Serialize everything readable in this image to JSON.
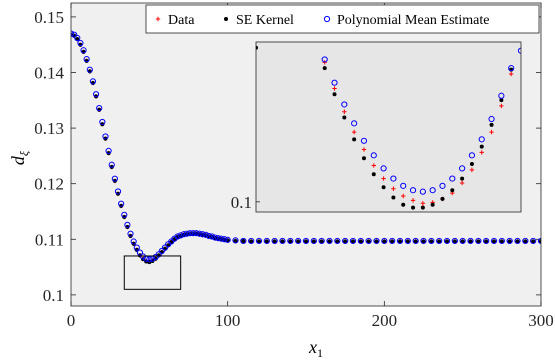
{
  "chart_data": {
    "type": "scatter",
    "xlabel": "x",
    "xlabel_sub": "1",
    "ylabel": "d",
    "ylabel_sub": "ξ",
    "xlim": [
      0,
      300
    ],
    "ylim": [
      0.098,
      0.1525
    ],
    "xticks": [
      0,
      100,
      200,
      300
    ],
    "yticks": [
      0.1,
      0.11,
      0.12,
      0.13,
      0.14,
      0.15
    ],
    "xtick_labels": [
      "0",
      "100",
      "200",
      "300"
    ],
    "ytick_labels": [
      "0.1",
      "0.11",
      "0.12",
      "0.13",
      "0.14",
      "0.15"
    ],
    "background": "#f0f0f0",
    "legend": {
      "placement": "top-right",
      "entries": [
        {
          "label": "Data",
          "marker": "plus",
          "color": "#ff0000"
        },
        {
          "label": "SE Kernel",
          "marker": "dot",
          "color": "#000000"
        },
        {
          "label": "Polynomial Mean Estimate",
          "marker": "circle",
          "color": "#0000ff"
        }
      ]
    },
    "series": [
      {
        "name": "Data",
        "marker": "plus",
        "color": "#ff0000",
        "x": [
          0,
          2,
          4,
          6,
          8,
          10,
          12,
          14,
          16,
          18,
          20,
          22,
          24,
          26,
          28,
          30,
          32,
          34,
          36,
          38,
          40,
          42,
          44,
          46,
          48,
          50,
          52,
          54,
          56,
          58,
          60,
          62,
          64,
          66,
          68,
          70,
          72,
          74,
          76,
          78,
          80,
          82,
          84,
          86,
          88,
          90,
          92,
          94,
          96,
          98,
          100,
          105,
          110,
          115,
          120,
          125,
          130,
          135,
          140,
          145,
          150,
          155,
          160,
          165,
          170,
          175,
          180,
          185,
          190,
          195,
          200,
          205,
          210,
          215,
          220,
          225,
          230,
          235,
          240,
          245,
          250,
          255,
          260,
          265,
          270,
          275,
          280,
          285,
          290,
          295,
          300
        ],
        "y": [
          0.1468,
          0.1466,
          0.146,
          0.145,
          0.1437,
          0.1421,
          0.1402,
          0.1381,
          0.1357,
          0.1333,
          0.1307,
          0.1281,
          0.1255,
          0.123,
          0.1205,
          0.1182,
          0.116,
          0.114,
          0.1122,
          0.1106,
          0.1092,
          0.1081,
          0.1071,
          0.1065,
          0.1061,
          0.106,
          0.1062,
          0.1065,
          0.1071,
          0.1077,
          0.1083,
          0.1089,
          0.1095,
          0.11,
          0.1104,
          0.1106,
          0.1108,
          0.1109,
          0.111,
          0.111,
          0.111,
          0.1109,
          0.1108,
          0.1107,
          0.1105,
          0.1104,
          0.1102,
          0.1101,
          0.11,
          0.1099,
          0.1098,
          0.1097,
          0.1097,
          0.1096,
          0.1096,
          0.1096,
          0.1096,
          0.1096,
          0.1096,
          0.1096,
          0.1096,
          0.1096,
          0.1096,
          0.1096,
          0.1096,
          0.1096,
          0.1096,
          0.1096,
          0.1096,
          0.1096,
          0.1096,
          0.1096,
          0.1096,
          0.1096,
          0.1096,
          0.1096,
          0.1096,
          0.1096,
          0.1096,
          0.1096,
          0.1096,
          0.1096,
          0.1096,
          0.1096,
          0.1096,
          0.1096,
          0.1096,
          0.1096,
          0.1096,
          0.1096,
          0.1096
        ]
      },
      {
        "name": "SE Kernel",
        "marker": "dot",
        "color": "#000000",
        "x": [
          0,
          2,
          4,
          6,
          8,
          10,
          12,
          14,
          16,
          18,
          20,
          22,
          24,
          26,
          28,
          30,
          32,
          34,
          36,
          38,
          40,
          42,
          44,
          46,
          48,
          50,
          52,
          54,
          56,
          58,
          60,
          62,
          64,
          66,
          68,
          70,
          72,
          74,
          76,
          78,
          80,
          82,
          84,
          86,
          88,
          90,
          92,
          94,
          96,
          98,
          100,
          105,
          110,
          115,
          120,
          125,
          130,
          135,
          140,
          145,
          150,
          155,
          160,
          165,
          170,
          175,
          180,
          185,
          190,
          195,
          200,
          205,
          210,
          215,
          220,
          225,
          230,
          235,
          240,
          245,
          250,
          255,
          260,
          265,
          270,
          275,
          280,
          285,
          290,
          295,
          300
        ],
        "y": [
          0.1468,
          0.1466,
          0.146,
          0.145,
          0.1437,
          0.1421,
          0.1402,
          0.1381,
          0.1357,
          0.1333,
          0.1307,
          0.1281,
          0.1255,
          0.123,
          0.1205,
          0.1182,
          0.116,
          0.114,
          0.1122,
          0.1106,
          0.1092,
          0.1081,
          0.1071,
          0.1064,
          0.106,
          0.1059,
          0.1061,
          0.1065,
          0.1071,
          0.1077,
          0.1083,
          0.1089,
          0.1095,
          0.11,
          0.1104,
          0.1106,
          0.1108,
          0.1109,
          0.111,
          0.111,
          0.111,
          0.1109,
          0.1108,
          0.1107,
          0.1105,
          0.1104,
          0.1102,
          0.1101,
          0.11,
          0.1099,
          0.1098,
          0.1097,
          0.1097,
          0.1096,
          0.1096,
          0.1096,
          0.1096,
          0.1096,
          0.1096,
          0.1096,
          0.1096,
          0.1096,
          0.1096,
          0.1096,
          0.1096,
          0.1096,
          0.1096,
          0.1096,
          0.1096,
          0.1096,
          0.1096,
          0.1096,
          0.1096,
          0.1096,
          0.1096,
          0.1096,
          0.1096,
          0.1096,
          0.1096,
          0.1096,
          0.1096,
          0.1096,
          0.1096,
          0.1096,
          0.1096,
          0.1096,
          0.1096,
          0.1096,
          0.1096,
          0.1096,
          0.1096
        ]
      },
      {
        "name": "Polynomial Mean Estimate",
        "marker": "circle",
        "color": "#0000ff",
        "x": [
          0,
          2,
          4,
          6,
          8,
          10,
          12,
          14,
          16,
          18,
          20,
          22,
          24,
          26,
          28,
          30,
          32,
          34,
          36,
          38,
          40,
          42,
          44,
          46,
          48,
          50,
          52,
          54,
          56,
          58,
          60,
          62,
          64,
          66,
          68,
          70,
          72,
          74,
          76,
          78,
          80,
          82,
          84,
          86,
          88,
          90,
          92,
          94,
          96,
          98,
          100,
          105,
          110,
          115,
          120,
          125,
          130,
          135,
          140,
          145,
          150,
          155,
          160,
          165,
          170,
          175,
          180,
          185,
          190,
          195,
          200,
          205,
          210,
          215,
          220,
          225,
          230,
          235,
          240,
          245,
          250,
          255,
          260,
          265,
          270,
          275,
          280,
          285,
          290,
          295,
          300
        ],
        "y": [
          0.147,
          0.1468,
          0.1462,
          0.1453,
          0.144,
          0.1424,
          0.1405,
          0.1384,
          0.1361,
          0.1336,
          0.1311,
          0.1285,
          0.1259,
          0.1234,
          0.1209,
          0.1186,
          0.1164,
          0.1144,
          0.1126,
          0.111,
          0.1096,
          0.1085,
          0.1076,
          0.1069,
          0.1065,
          0.1064,
          0.1065,
          0.1068,
          0.1073,
          0.1079,
          0.1085,
          0.1091,
          0.1096,
          0.1101,
          0.1105,
          0.1107,
          0.1109,
          0.111,
          0.1111,
          0.1111,
          0.1111,
          0.111,
          0.1109,
          0.1108,
          0.1106,
          0.1105,
          0.1103,
          0.1102,
          0.1101,
          0.11,
          0.1099,
          0.1098,
          0.1097,
          0.1097,
          0.1097,
          0.1097,
          0.1097,
          0.1097,
          0.1097,
          0.1097,
          0.1097,
          0.1097,
          0.1097,
          0.1097,
          0.1097,
          0.1097,
          0.1097,
          0.1097,
          0.1097,
          0.1097,
          0.1097,
          0.1097,
          0.1097,
          0.1097,
          0.1097,
          0.1097,
          0.1097,
          0.1097,
          0.1097,
          0.1097,
          0.1097,
          0.1097,
          0.1097,
          0.1097,
          0.1097,
          0.1097,
          0.1097,
          0.1097,
          0.1097,
          0.1097,
          0.1097
        ]
      }
    ],
    "inset": {
      "zoom_box_xlim": [
        34,
        70
      ],
      "zoom_box_ylim": [
        0.101,
        0.107
      ],
      "xlim": [
        33,
        60
      ],
      "ylim": [
        0.09965,
        0.1055
      ],
      "yticks": [
        0.1
      ],
      "ytick_labels": [
        "0.1"
      ],
      "background": "#e6e6e6",
      "series": [
        {
          "name": "Data",
          "marker": "plus",
          "color": "#ff0000",
          "x": [
            40,
            41,
            42,
            43,
            44,
            45,
            46,
            47,
            48,
            49,
            50,
            51,
            52,
            53,
            54,
            55,
            56,
            57,
            58,
            59
          ],
          "y": [
            0.1048,
            0.1039,
            0.1031,
            0.1024,
            0.1018,
            0.10125,
            0.1008,
            0.10045,
            0.1002,
            0.10005,
            0.09995,
            0.09998,
            0.1001,
            0.1003,
            0.10065,
            0.1011,
            0.1017,
            0.1024,
            0.1033,
            0.1044
          ]
        },
        {
          "name": "SE Kernel",
          "marker": "dot",
          "color": "#000000",
          "x": [
            33,
            40,
            41,
            42,
            43,
            44,
            45,
            46,
            47,
            48,
            49,
            50,
            51,
            52,
            53,
            54,
            55,
            56,
            57,
            58,
            59
          ],
          "y": [
            0.1053,
            0.1046,
            0.1037,
            0.1029,
            0.10215,
            0.1015,
            0.10095,
            0.1005,
            0.10015,
            0.0999,
            0.0998,
            0.0998,
            0.0999,
            0.1001,
            0.1004,
            0.1008,
            0.1013,
            0.1019,
            0.10265,
            0.1035,
            0.10455
          ]
        },
        {
          "name": "Polynomial Mean Estimate",
          "marker": "circle",
          "color": "#0000ff",
          "x": [
            40,
            41,
            42,
            43,
            44,
            45,
            46,
            47,
            48,
            49,
            50,
            51,
            52,
            53,
            54,
            55,
            56,
            57,
            58,
            59,
            60
          ],
          "y": [
            0.1049,
            0.1041,
            0.10335,
            0.1027,
            0.1021,
            0.1016,
            0.10115,
            0.1008,
            0.10055,
            0.1004,
            0.10035,
            0.1004,
            0.10055,
            0.1008,
            0.10115,
            0.1016,
            0.10215,
            0.10285,
            0.10365,
            0.1046,
            0.1052
          ]
        }
      ]
    }
  }
}
